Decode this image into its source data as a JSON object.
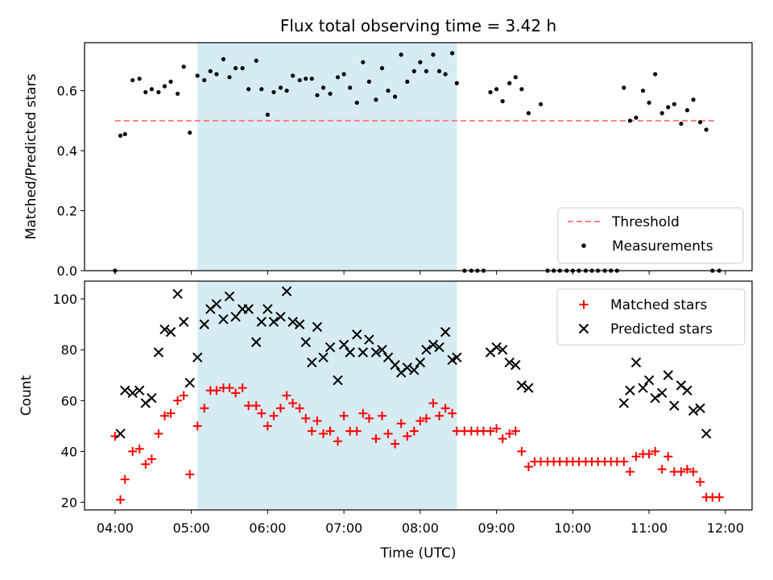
{
  "title": "Flux total observing time = 3.42 h",
  "colors": {
    "threshold": "#ff7f7f",
    "measurements": "#000000",
    "matched": "#ff0000",
    "predicted": "#000000",
    "shade": "#add8e6"
  },
  "chart_data": [
    {
      "type": "scatter",
      "ylabel": "Matched/Predicted stars",
      "xlim": [
        3.6,
        12.35
      ],
      "ylim": [
        0,
        0.76
      ],
      "yticks": [
        0.0,
        0.2,
        0.4,
        0.6
      ],
      "ytick_labels": [
        "0.0",
        "0.2",
        "0.4",
        "0.6"
      ],
      "shaded_x_range": [
        5.08,
        8.48
      ],
      "threshold": {
        "label": "Threshold",
        "x": [
          4.0,
          11.88
        ],
        "y": 0.5
      },
      "legend_loc": "lower right",
      "series": [
        {
          "name": "Measurements",
          "x": [
            4.0,
            4.07,
            4.13,
            4.23,
            4.32,
            4.4,
            4.48,
            4.57,
            4.65,
            4.73,
            4.82,
            4.9,
            4.98,
            5.08,
            5.17,
            5.25,
            5.33,
            5.42,
            5.5,
            5.58,
            5.67,
            5.75,
            5.85,
            5.92,
            6.0,
            6.08,
            6.17,
            6.25,
            6.33,
            6.42,
            6.5,
            6.58,
            6.65,
            6.73,
            6.82,
            6.92,
            7.0,
            7.08,
            7.17,
            7.25,
            7.33,
            7.42,
            7.5,
            7.58,
            7.67,
            7.75,
            7.83,
            7.92,
            8.0,
            8.08,
            8.17,
            8.25,
            8.33,
            8.42,
            8.48,
            8.58,
            8.67,
            8.75,
            8.83,
            8.92,
            9.0,
            9.08,
            9.17,
            9.25,
            9.33,
            9.42,
            9.58,
            9.67,
            9.75,
            9.83,
            9.92,
            10.0,
            10.08,
            10.17,
            10.25,
            10.33,
            10.42,
            10.5,
            10.58,
            10.67,
            10.75,
            10.83,
            10.92,
            11.0,
            11.08,
            11.17,
            11.25,
            11.33,
            11.42,
            11.5,
            11.58,
            11.67,
            11.75,
            11.83,
            11.92
          ],
          "y": [
            0.0,
            0.45,
            0.455,
            0.635,
            0.64,
            0.595,
            0.605,
            0.595,
            0.615,
            0.63,
            0.59,
            0.68,
            0.46,
            0.65,
            0.635,
            0.665,
            0.655,
            0.705,
            0.645,
            0.675,
            0.675,
            0.605,
            0.7,
            0.605,
            0.52,
            0.595,
            0.61,
            0.6,
            0.65,
            0.635,
            0.64,
            0.64,
            0.585,
            0.61,
            0.59,
            0.645,
            0.655,
            0.61,
            0.56,
            0.695,
            0.63,
            0.57,
            0.675,
            0.6,
            0.58,
            0.72,
            0.63,
            0.665,
            0.695,
            0.665,
            0.72,
            0.665,
            0.655,
            0.725,
            0.625,
            0.0,
            0.0,
            0.0,
            0.0,
            0.595,
            0.605,
            0.565,
            0.625,
            0.645,
            0.605,
            0.525,
            0.555,
            0.0,
            0.0,
            0.0,
            0.0,
            0.0,
            0.0,
            0.0,
            0.0,
            0.0,
            0.0,
            0.0,
            0.0,
            0.61,
            0.5,
            0.51,
            0.6,
            0.56,
            0.655,
            0.525,
            0.545,
            0.555,
            0.49,
            0.535,
            0.57,
            0.495,
            0.47,
            0.0,
            0.0
          ]
        }
      ]
    },
    {
      "type": "scatter",
      "xlabel": "Time (UTC)",
      "ylabel": "Count",
      "xlim": [
        3.6,
        12.35
      ],
      "ylim": [
        17,
        107
      ],
      "xticks": [
        4,
        5,
        6,
        7,
        8,
        9,
        10,
        11,
        12
      ],
      "xtick_labels": [
        "04:00",
        "05:00",
        "06:00",
        "07:00",
        "08:00",
        "09:00",
        "10:00",
        "11:00",
        "12:00"
      ],
      "yticks": [
        20,
        40,
        60,
        80,
        100
      ],
      "ytick_labels": [
        "20",
        "40",
        "60",
        "80",
        "100"
      ],
      "shaded_x_range": [
        5.08,
        8.48
      ],
      "legend_loc": "upper right",
      "series": [
        {
          "name": "Matched stars",
          "marker": "plus",
          "x": [
            4.0,
            4.07,
            4.13,
            4.23,
            4.32,
            4.4,
            4.48,
            4.57,
            4.65,
            4.73,
            4.82,
            4.9,
            4.98,
            5.08,
            5.17,
            5.25,
            5.33,
            5.42,
            5.5,
            5.58,
            5.67,
            5.75,
            5.85,
            5.92,
            6.0,
            6.08,
            6.17,
            6.25,
            6.33,
            6.42,
            6.5,
            6.58,
            6.65,
            6.73,
            6.82,
            6.92,
            7.0,
            7.08,
            7.17,
            7.25,
            7.33,
            7.42,
            7.5,
            7.58,
            7.67,
            7.75,
            7.83,
            7.92,
            8.0,
            8.08,
            8.17,
            8.25,
            8.33,
            8.42,
            8.48,
            8.58,
            8.67,
            8.75,
            8.83,
            8.92,
            9.0,
            9.08,
            9.17,
            9.25,
            9.33,
            9.42,
            9.5,
            9.58,
            9.67,
            9.75,
            9.83,
            9.92,
            10.0,
            10.08,
            10.17,
            10.25,
            10.33,
            10.42,
            10.5,
            10.58,
            10.67,
            10.75,
            10.83,
            10.92,
            11.0,
            11.08,
            11.17,
            11.25,
            11.33,
            11.42,
            11.5,
            11.58,
            11.67,
            11.75,
            11.83,
            11.92
          ],
          "y": [
            46,
            21,
            29,
            40,
            41,
            35,
            37,
            47,
            54,
            55,
            60,
            62,
            31,
            50,
            57,
            64,
            64,
            65,
            65,
            63,
            65,
            58,
            58,
            55,
            50,
            54,
            57,
            62,
            59,
            57,
            53,
            48,
            52,
            47,
            48,
            44,
            54,
            48,
            48,
            55,
            53,
            45,
            54,
            47,
            43,
            51,
            46,
            48,
            52,
            53,
            59,
            54,
            57,
            55,
            48,
            48,
            48,
            48,
            48,
            48,
            49,
            45,
            47,
            48,
            40,
            34,
            36,
            36,
            36,
            36,
            36,
            36,
            36,
            36,
            36,
            36,
            36,
            36,
            36,
            36,
            36,
            32,
            38,
            39,
            39,
            40,
            33,
            38,
            32,
            32,
            33,
            32,
            28,
            22,
            22,
            22
          ]
        },
        {
          "name": "Predicted stars",
          "marker": "x",
          "x": [
            4.07,
            4.13,
            4.23,
            4.32,
            4.4,
            4.48,
            4.57,
            4.65,
            4.73,
            4.82,
            4.9,
            4.98,
            5.08,
            5.17,
            5.25,
            5.33,
            5.42,
            5.5,
            5.58,
            5.67,
            5.75,
            5.85,
            5.92,
            6.0,
            6.08,
            6.17,
            6.25,
            6.33,
            6.42,
            6.5,
            6.58,
            6.65,
            6.73,
            6.82,
            6.92,
            7.0,
            7.08,
            7.17,
            7.25,
            7.33,
            7.42,
            7.5,
            7.58,
            7.67,
            7.75,
            7.83,
            7.92,
            8.0,
            8.08,
            8.17,
            8.25,
            8.33,
            8.42,
            8.48,
            8.92,
            9.0,
            9.08,
            9.17,
            9.25,
            9.33,
            9.42,
            10.67,
            10.75,
            10.83,
            10.92,
            11.0,
            11.08,
            11.17,
            11.25,
            11.33,
            11.42,
            11.5,
            11.58,
            11.67,
            11.75
          ],
          "y": [
            47,
            64,
            63,
            64,
            59,
            61,
            79,
            88,
            87,
            102,
            91,
            67,
            77,
            90,
            96,
            98,
            92,
            101,
            93,
            96,
            96,
            83,
            91,
            96,
            91,
            93,
            103,
            91,
            90,
            83,
            75,
            89,
            77,
            81,
            68,
            82,
            79,
            86,
            79,
            84,
            79,
            80,
            77,
            74,
            71,
            73,
            72,
            75,
            80,
            82,
            81,
            87,
            76,
            77,
            79,
            81,
            80,
            75,
            74,
            66,
            65,
            59,
            64,
            75,
            65,
            68,
            61,
            63,
            70,
            58,
            66,
            64,
            56,
            57,
            47
          ]
        }
      ]
    }
  ]
}
